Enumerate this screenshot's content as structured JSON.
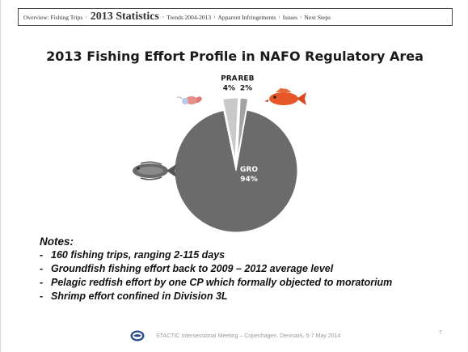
{
  "nav": {
    "items": [
      {
        "label": "Overview: Fishing Trips",
        "active": false
      },
      {
        "label": "2013 Statistics",
        "active": true
      },
      {
        "label": "Trends 2004-2013",
        "active": false
      },
      {
        "label": "Apparent Infringements",
        "active": false
      },
      {
        "label": "Issues",
        "active": false
      },
      {
        "label": "Next Steps",
        "active": false
      }
    ]
  },
  "chart_data": {
    "type": "pie",
    "title": "2013 Fishing Effort Profile in NAFO Regulatory Area",
    "slices": [
      {
        "name": "GRO",
        "value": 94,
        "label": "94%",
        "color": "#6b6b6b"
      },
      {
        "name": "PRA",
        "value": 4,
        "label": "4%",
        "color": "#c9c9c9"
      },
      {
        "name": "REB",
        "value": 2,
        "label": "2%",
        "color": "#a3a3a3"
      }
    ],
    "legend": "none",
    "icons": [
      "shrimp-icon",
      "redfish-icon",
      "groundfish-icon"
    ]
  },
  "notes": {
    "title": "Notes:",
    "items": [
      "160 fishing trips, ranging 2-115 days",
      "Groundfish fishing effort back to 2009 – 2012 average level",
      "Pelagic redfish effort by one CP which formally objected to moratorium",
      "Shrimp effort confined in Division 3L"
    ]
  },
  "footer": {
    "text": "STACTIC Intersessional Meeting – Copenhagen, Denmark, 5-7 May 2014",
    "page": "7"
  }
}
